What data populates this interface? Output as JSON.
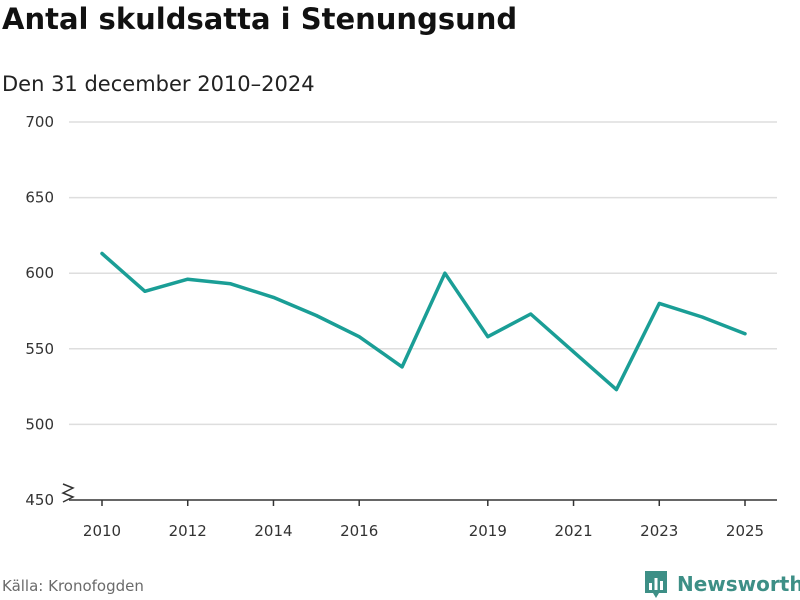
{
  "title": "Antal skuldsatta i Stenungsund",
  "subtitle": "Den 31 december 2010–2024",
  "source": "Källa: Kronofogden",
  "brand": {
    "name": "Newsworthy",
    "logo_icon": "bar-chart-speech-icon",
    "color": "#3d8f86"
  },
  "chart_data": {
    "type": "line",
    "title": "Antal skuldsatta i Stenungsund",
    "subtitle": "Den 31 december 2010–2024",
    "xlabel": "",
    "ylabel": "",
    "ylim": [
      450,
      700
    ],
    "y_ticks": [
      450,
      500,
      550,
      600,
      650,
      700
    ],
    "x_ticks": [
      2010,
      2012,
      2014,
      2016,
      2019,
      2021,
      2023,
      2025
    ],
    "grid": true,
    "axis_break": true,
    "series": [
      {
        "name": "Antal skuldsatta",
        "color": "#1a9e96",
        "x": [
          2010,
          2011,
          2012,
          2013,
          2014,
          2015,
          2016,
          2017,
          2018,
          2019,
          2020,
          2021,
          2022,
          2023,
          2024,
          2025
        ],
        "values": [
          613,
          588,
          596,
          593,
          584,
          572,
          558,
          538,
          600,
          558,
          573,
          548,
          523,
          580,
          571,
          560
        ]
      }
    ]
  }
}
